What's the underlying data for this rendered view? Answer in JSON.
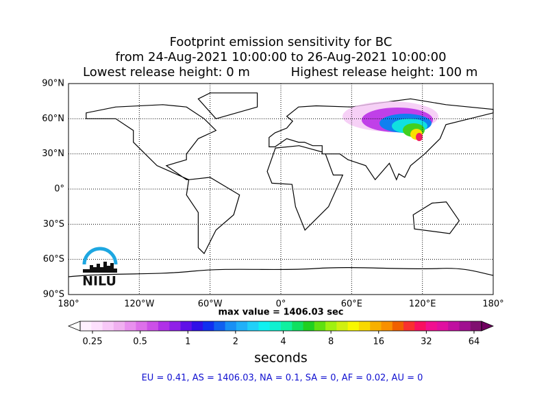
{
  "title": [
    "Footprint emission sensitivity for BC",
    "from 24-Aug-2021 10:00:00 to 26-Aug-2021 10:00:00"
  ],
  "release_heights": [
    "Lowest release height: 0 m",
    "Highest release height: 100 m"
  ],
  "map": {
    "lat_lim": [
      -90,
      90
    ],
    "lon_lim": [
      -180,
      180
    ],
    "lat_ticks": [
      {
        "value": 90,
        "label": "90°N"
      },
      {
        "value": 60,
        "label": "60°N"
      },
      {
        "value": 30,
        "label": "30°N"
      },
      {
        "value": 0,
        "label": "0°"
      },
      {
        "value": -30,
        "label": "30°S"
      },
      {
        "value": -60,
        "label": "60°S"
      },
      {
        "value": -90,
        "label": "90°S"
      }
    ],
    "lon_ticks": [
      {
        "value": -180,
        "label": "180°"
      },
      {
        "value": -120,
        "label": "120°W"
      },
      {
        "value": -60,
        "label": "60°W"
      },
      {
        "value": 0,
        "label": "0°"
      },
      {
        "value": 60,
        "label": "60°E"
      },
      {
        "value": 120,
        "label": "120°E"
      },
      {
        "value": 180,
        "label": "180°"
      }
    ]
  },
  "logo": "NILU",
  "max_value": "max value = 1406.03 sec",
  "colorbar": {
    "log": true,
    "lim": [
      0.25,
      64
    ],
    "ticks": [
      0.25,
      0.5,
      1,
      2,
      4,
      8,
      16,
      32,
      64
    ],
    "label": "seconds",
    "under_color": "#ffffff",
    "over_color": "#700060",
    "colors": [
      "#fff0ff",
      "#fde0fd",
      "#f8c8f8",
      "#f0b0f0",
      "#e890ee",
      "#dd70ea",
      "#cc50e8",
      "#b030e8",
      "#9020e8",
      "#6010e8",
      "#3010e8",
      "#1030f0",
      "#1060f0",
      "#1890f5",
      "#20b0f8",
      "#20d0f8",
      "#10f0f0",
      "#10f0d0",
      "#10f0a0",
      "#10e060",
      "#20d020",
      "#60e010",
      "#a0f010",
      "#d0f010",
      "#f8f800",
      "#f8d800",
      "#f8b000",
      "#f89000",
      "#f06000",
      "#f83030",
      "#f81060",
      "#f01090",
      "#e010a0",
      "#c010a0",
      "#a01090",
      "#801070"
    ]
  },
  "regions": "EU = 0.41,  AS = 1406.03,  NA = 0.1,  SA = 0,  AF = 0.02,  AU = 0"
}
